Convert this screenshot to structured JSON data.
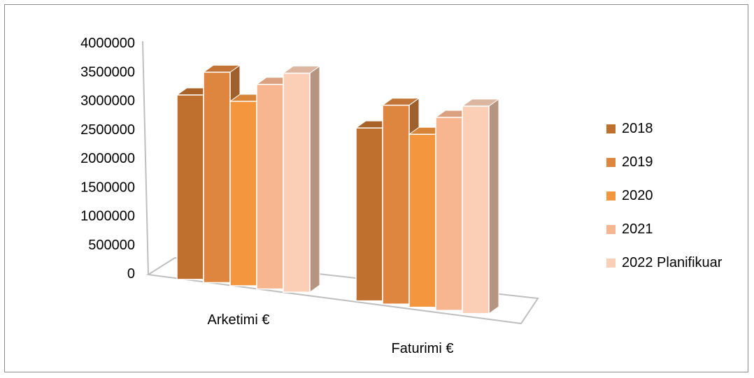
{
  "chart_data": {
    "type": "bar",
    "style": "3d-clustered-column",
    "categories": [
      "Arketimi €",
      "Faturimi €"
    ],
    "series": [
      {
        "name": "2018",
        "color": "#c0702e",
        "values": [
          3200000,
          3000000
        ]
      },
      {
        "name": "2019",
        "color": "#de8540",
        "values": [
          3650000,
          3450000
        ]
      },
      {
        "name": "2020",
        "color": "#f4963e",
        "values": [
          3200000,
          3000000
        ]
      },
      {
        "name": "2021",
        "color": "#f8b690",
        "values": [
          3550000,
          3350000
        ]
      },
      {
        "name": "2022 Planifikuar",
        "color": "#fbcfb5",
        "values": [
          3800000,
          3600000
        ]
      }
    ],
    "y_ticks": [
      "0",
      "500000",
      "1000000",
      "1500000",
      "2000000",
      "2500000",
      "3000000",
      "3500000",
      "4000000"
    ],
    "ylim": [
      0,
      4000000
    ],
    "grid": false,
    "legend_position": "right"
  }
}
